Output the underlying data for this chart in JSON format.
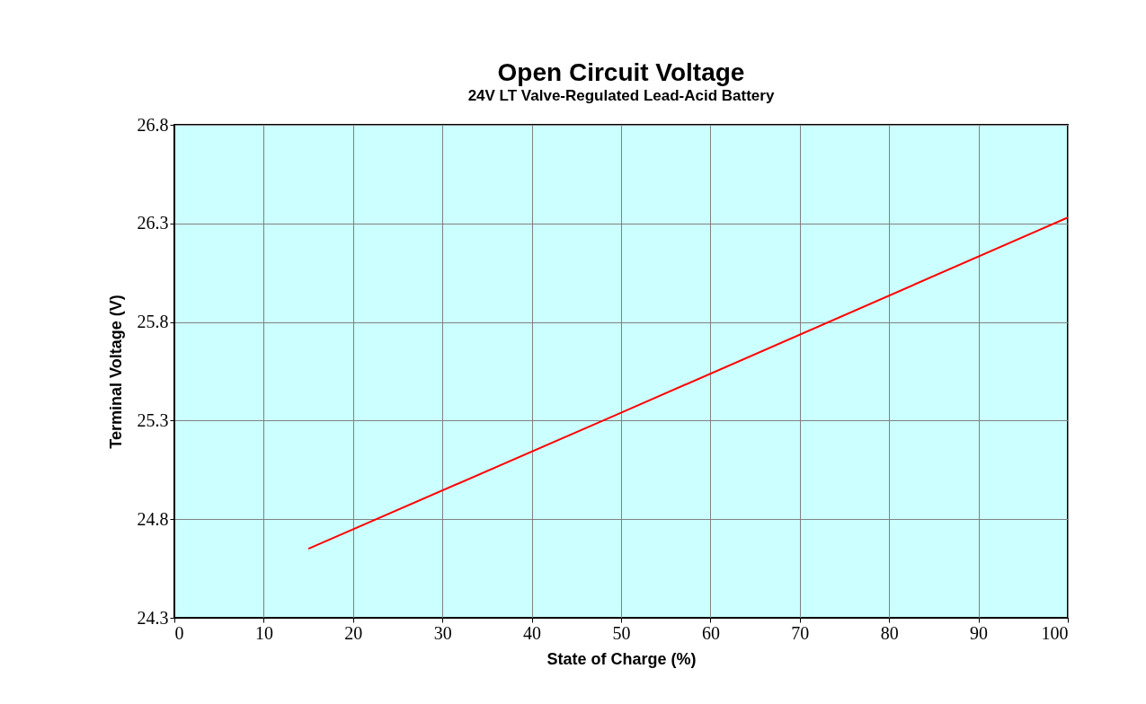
{
  "chart_data": {
    "type": "line",
    "title": "Open Circuit Voltage",
    "subtitle": "24V LT Valve-Regulated Lead-Acid Battery",
    "xlabel": "State of Charge (%)",
    "ylabel": "Terminal Voltage (V)",
    "x": [
      15,
      50,
      100
    ],
    "series": [
      {
        "color": "#ff0000",
        "values": [
          24.65,
          25.34,
          26.33
        ]
      }
    ],
    "xlim": [
      0,
      100
    ],
    "xticks": [
      0,
      10,
      20,
      30,
      40,
      50,
      60,
      70,
      80,
      90,
      100
    ],
    "ylim": [
      24.3,
      26.8
    ],
    "yticks": [
      24.3,
      24.8,
      25.3,
      25.8,
      26.3,
      26.8
    ],
    "grid": true,
    "legend": false,
    "marker": "none",
    "line_style": "solid"
  }
}
